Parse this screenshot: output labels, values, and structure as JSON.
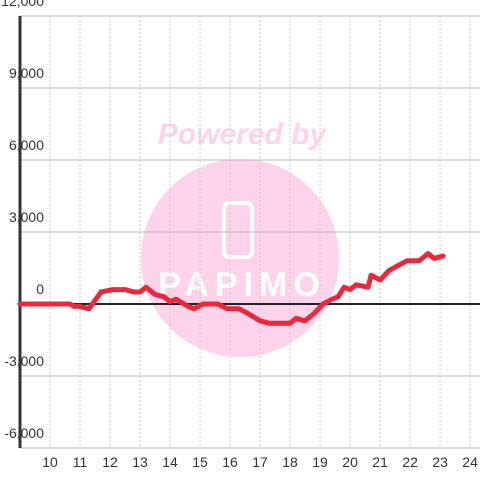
{
  "chart_data": {
    "type": "line",
    "x": [
      9.0,
      10.67,
      10.8,
      11.0,
      11.3,
      11.7,
      12.1,
      12.5,
      12.8,
      13.0,
      13.2,
      13.5,
      13.8,
      14.0,
      14.2,
      14.6,
      14.8,
      15.1,
      15.6,
      15.9,
      16.3,
      16.6,
      17.0,
      17.3,
      18.0,
      18.2,
      18.5,
      18.8,
      19.1,
      19.4,
      19.6,
      19.8,
      20.0,
      20.2,
      20.6,
      20.7,
      21.0,
      21.3,
      21.6,
      21.9,
      22.3,
      22.6,
      22.8,
      23.1
    ],
    "series": [
      {
        "color": "#e8283c",
        "values": [
          0,
          0,
          -100,
          -100,
          -200,
          500,
          600,
          600,
          500,
          500,
          700,
          400,
          300,
          100,
          200,
          -100,
          -200,
          0,
          0,
          -200,
          -200,
          -400,
          -700,
          -800,
          -800,
          -600,
          -700,
          -400,
          0,
          200,
          300,
          700,
          600,
          800,
          700,
          1200,
          1000,
          1400,
          1600,
          1800,
          1800,
          2100,
          1900,
          2000
        ]
      }
    ],
    "xlim": [
      9,
      24.33
    ],
    "ylim": [
      -6000,
      12000
    ],
    "xticks": [
      10,
      11,
      12,
      13,
      14,
      15,
      16,
      17,
      18,
      19,
      20,
      21,
      22,
      23,
      24
    ],
    "yticks": [
      {
        "value": -6000,
        "label": "-6,000"
      },
      {
        "value": -3000,
        "label": "-3,000"
      },
      0,
      {
        "value": 3000,
        "label": "3,000"
      },
      {
        "value": 6000,
        "label": "6,000"
      },
      {
        "value": 9000,
        "label": "9,000"
      },
      {
        "value": 12000,
        "label": "12,000"
      }
    ],
    "grid": true
  },
  "watermark": {
    "text": "Powered by",
    "logo": "PAPIMO"
  }
}
